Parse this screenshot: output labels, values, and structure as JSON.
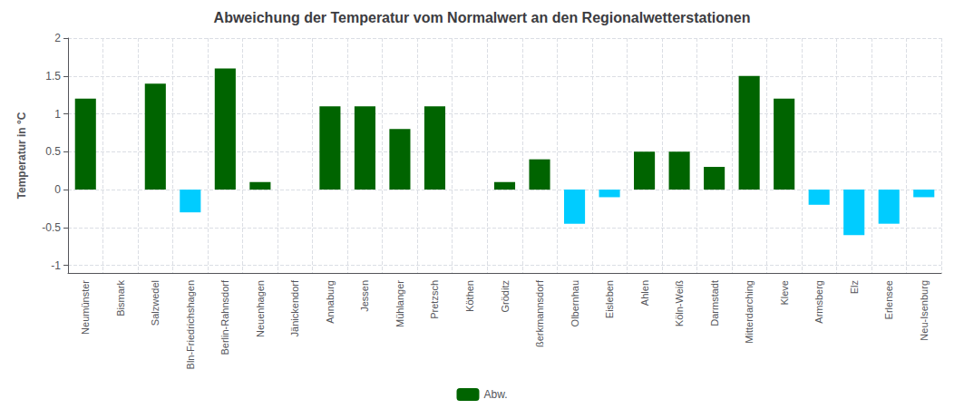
{
  "chart_data": {
    "type": "bar",
    "title": "Abweichung der Temperatur vom Normalwert an den Regionalwetterstationen",
    "ylabel": "Temperatur in °C",
    "categories": [
      "Neumünster",
      "Bismark",
      "Salzwedel",
      "Bln-Friedrichshagen",
      "Berlin-Rahnsdorf",
      "Neuenhagen",
      "Jänickendorf",
      "Annaburg",
      "Jessen",
      "Mühlanger",
      "Pretzsch",
      "Köthen",
      "Gröditz",
      "ßerkmannsdorf",
      "Olbernhau",
      "Eisleben",
      "Ahlen",
      "Köln-Weiß",
      "Darmstadt",
      "Mitterdarching",
      "Kleve",
      "Armsberg",
      "Elz",
      "Erlensee",
      "Neu-Isenburg"
    ],
    "series": [
      {
        "name": "Abw.",
        "color": "#006400",
        "colors": [
          "#006400",
          "#006400",
          "#006400",
          "#00ccff",
          "#006400",
          "#006400",
          "#006400",
          "#006400",
          "#006400",
          "#006400",
          "#006400",
          "#006400",
          "#006400",
          "#006400",
          "#00ccff",
          "#00ccff",
          "#006400",
          "#006400",
          "#006400",
          "#006400",
          "#006400",
          "#00ccff",
          "#00ccff",
          "#00ccff",
          "#00ccff"
        ],
        "values": [
          1.2,
          0.0,
          1.4,
          -0.3,
          1.6,
          0.1,
          0.0,
          1.1,
          1.1,
          0.8,
          1.1,
          0.0,
          0.1,
          0.4,
          -0.45,
          -0.1,
          0.5,
          0.5,
          0.3,
          1.5,
          1.2,
          -0.2,
          -0.6,
          -0.45,
          -0.1
        ]
      }
    ],
    "ylim": [
      -1.1,
      2.0
    ],
    "yticks": [
      -1,
      -0.5,
      0,
      0.5,
      1,
      1.5,
      2
    ],
    "grid": true,
    "legend": "bottom"
  }
}
